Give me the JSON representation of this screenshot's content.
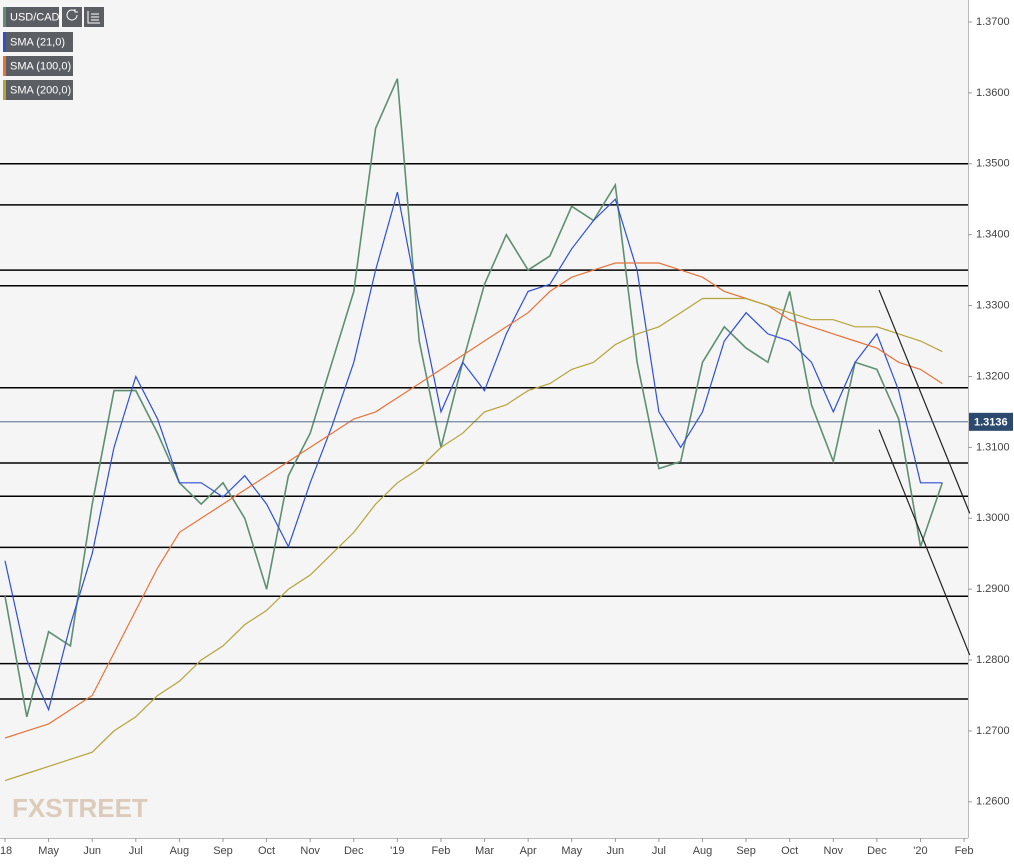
{
  "chart_data": {
    "type": "line",
    "x": [
      0,
      0.5,
      1,
      1.5,
      2,
      2.5,
      3,
      3.5,
      4,
      4.5,
      5,
      5.5,
      6,
      6.5,
      7,
      7.5,
      8,
      8.5,
      9,
      9.5,
      10,
      10.5,
      11,
      11.5,
      12,
      12.5,
      13,
      13.5,
      14,
      14.5,
      15,
      15.5,
      16,
      16.5,
      17,
      17.5,
      18,
      18.5,
      19,
      19.5,
      20,
      20.5,
      21,
      21.5
    ],
    "xlim": [
      -0.115,
      22.09
    ],
    "xticks": [
      {
        "value": 0,
        "label": "'18"
      },
      {
        "value": 1,
        "label": "May"
      },
      {
        "value": 2,
        "label": "Jun"
      },
      {
        "value": 3,
        "label": "Jul"
      },
      {
        "value": 4,
        "label": "Aug"
      },
      {
        "value": 5,
        "label": "Sep"
      },
      {
        "value": 6,
        "label": "Oct"
      },
      {
        "value": 7,
        "label": "Nov"
      },
      {
        "value": 8,
        "label": "Dec"
      },
      {
        "value": 9,
        "label": "'19"
      },
      {
        "value": 10,
        "label": "Feb"
      },
      {
        "value": 11,
        "label": "Mar"
      },
      {
        "value": 12,
        "label": "Apr"
      },
      {
        "value": 13,
        "label": "May"
      },
      {
        "value": 14,
        "label": "Jun"
      },
      {
        "value": 15,
        "label": "Jul"
      },
      {
        "value": 16,
        "label": "Aug"
      },
      {
        "value": 17,
        "label": "Sep"
      },
      {
        "value": 18,
        "label": "Oct"
      },
      {
        "value": 19,
        "label": "Nov"
      },
      {
        "value": 20,
        "label": "Dec"
      },
      {
        "value": 21,
        "label": "'20"
      },
      {
        "value": 22,
        "label": "Feb"
      }
    ],
    "ylim": [
      1.2549,
      1.3731
    ],
    "yticks": [
      {
        "value": 1.26,
        "label": "1.2600"
      },
      {
        "value": 1.27,
        "label": "1.2700"
      },
      {
        "value": 1.28,
        "label": "1.2800"
      },
      {
        "value": 1.29,
        "label": "1.2900"
      },
      {
        "value": 1.3,
        "label": "1.3000"
      },
      {
        "value": 1.31,
        "label": "1.3100"
      },
      {
        "value": 1.32,
        "label": "1.3200"
      },
      {
        "value": 1.33,
        "label": "1.3300"
      },
      {
        "value": 1.34,
        "label": "1.3400"
      },
      {
        "value": 1.35,
        "label": "1.3500"
      },
      {
        "value": 1.36,
        "label": "1.3600"
      },
      {
        "value": 1.37,
        "label": "1.3700"
      }
    ],
    "series": [
      {
        "name": "USD/CAD",
        "color": "#5f8f73",
        "values": [
          1.289,
          1.272,
          1.284,
          1.282,
          1.302,
          1.318,
          1.318,
          1.312,
          1.305,
          1.302,
          1.305,
          1.3,
          1.29,
          1.306,
          1.312,
          1.322,
          1.332,
          1.355,
          1.362,
          1.325,
          1.31,
          1.322,
          1.333,
          1.34,
          1.335,
          1.337,
          1.344,
          1.342,
          1.347,
          1.322,
          1.307,
          1.308,
          1.322,
          1.327,
          1.324,
          1.322,
          1.332,
          1.316,
          1.308,
          1.322,
          1.321,
          1.314,
          1.296,
          1.305
        ]
      },
      {
        "name": "SMA (21,0)",
        "color": "#2f4fd8",
        "values": [
          1.294,
          1.28,
          1.273,
          1.285,
          1.295,
          1.31,
          1.32,
          1.314,
          1.305,
          1.305,
          1.303,
          1.306,
          1.302,
          1.296,
          1.305,
          1.313,
          1.322,
          1.335,
          1.346,
          1.33,
          1.315,
          1.322,
          1.318,
          1.326,
          1.332,
          1.333,
          1.338,
          1.342,
          1.345,
          1.335,
          1.315,
          1.31,
          1.315,
          1.325,
          1.329,
          1.326,
          1.325,
          1.322,
          1.315,
          1.322,
          1.326,
          1.318,
          1.305,
          1.305
        ]
      },
      {
        "name": "SMA (100,0)",
        "color": "#e8733a",
        "values": [
          1.269,
          1.27,
          1.271,
          1.273,
          1.275,
          1.281,
          1.287,
          1.293,
          1.298,
          1.3,
          1.302,
          1.304,
          1.306,
          1.308,
          1.31,
          1.312,
          1.314,
          1.315,
          1.317,
          1.319,
          1.321,
          1.323,
          1.325,
          1.327,
          1.329,
          1.332,
          1.334,
          1.335,
          1.336,
          1.336,
          1.336,
          1.335,
          1.334,
          1.332,
          1.331,
          1.33,
          1.328,
          1.327,
          1.326,
          1.325,
          1.324,
          1.322,
          1.321,
          1.319
        ]
      },
      {
        "name": "SMA (200,0)",
        "color": "#b5a33a",
        "values": [
          1.263,
          1.264,
          1.265,
          1.266,
          1.267,
          1.27,
          1.272,
          1.275,
          1.277,
          1.28,
          1.282,
          1.285,
          1.287,
          1.29,
          1.292,
          1.295,
          1.298,
          1.302,
          1.305,
          1.307,
          1.31,
          1.312,
          1.315,
          1.316,
          1.318,
          1.319,
          1.321,
          1.322,
          1.3245,
          1.326,
          1.327,
          1.329,
          1.331,
          1.331,
          1.331,
          1.33,
          1.329,
          1.328,
          1.328,
          1.327,
          1.327,
          1.326,
          1.325,
          1.3235
        ]
      }
    ],
    "levels": [
      1.35,
      1.3442,
      1.335,
      1.3328,
      1.3184,
      1.3078,
      1.3031,
      1.2959,
      1.289,
      1.2795,
      1.2745
    ],
    "level_color": "#000000",
    "trendlines": [
      {
        "x": [
          20.05,
          22.13
        ],
        "y": [
          1.3322,
          1.3007
        ]
      },
      {
        "x": [
          20.05,
          22.13
        ],
        "y": [
          1.3125,
          1.2807
        ]
      }
    ],
    "last_price": {
      "value": 1.3136,
      "label": "1.3136"
    },
    "watermark": "FXSTREET"
  }
}
